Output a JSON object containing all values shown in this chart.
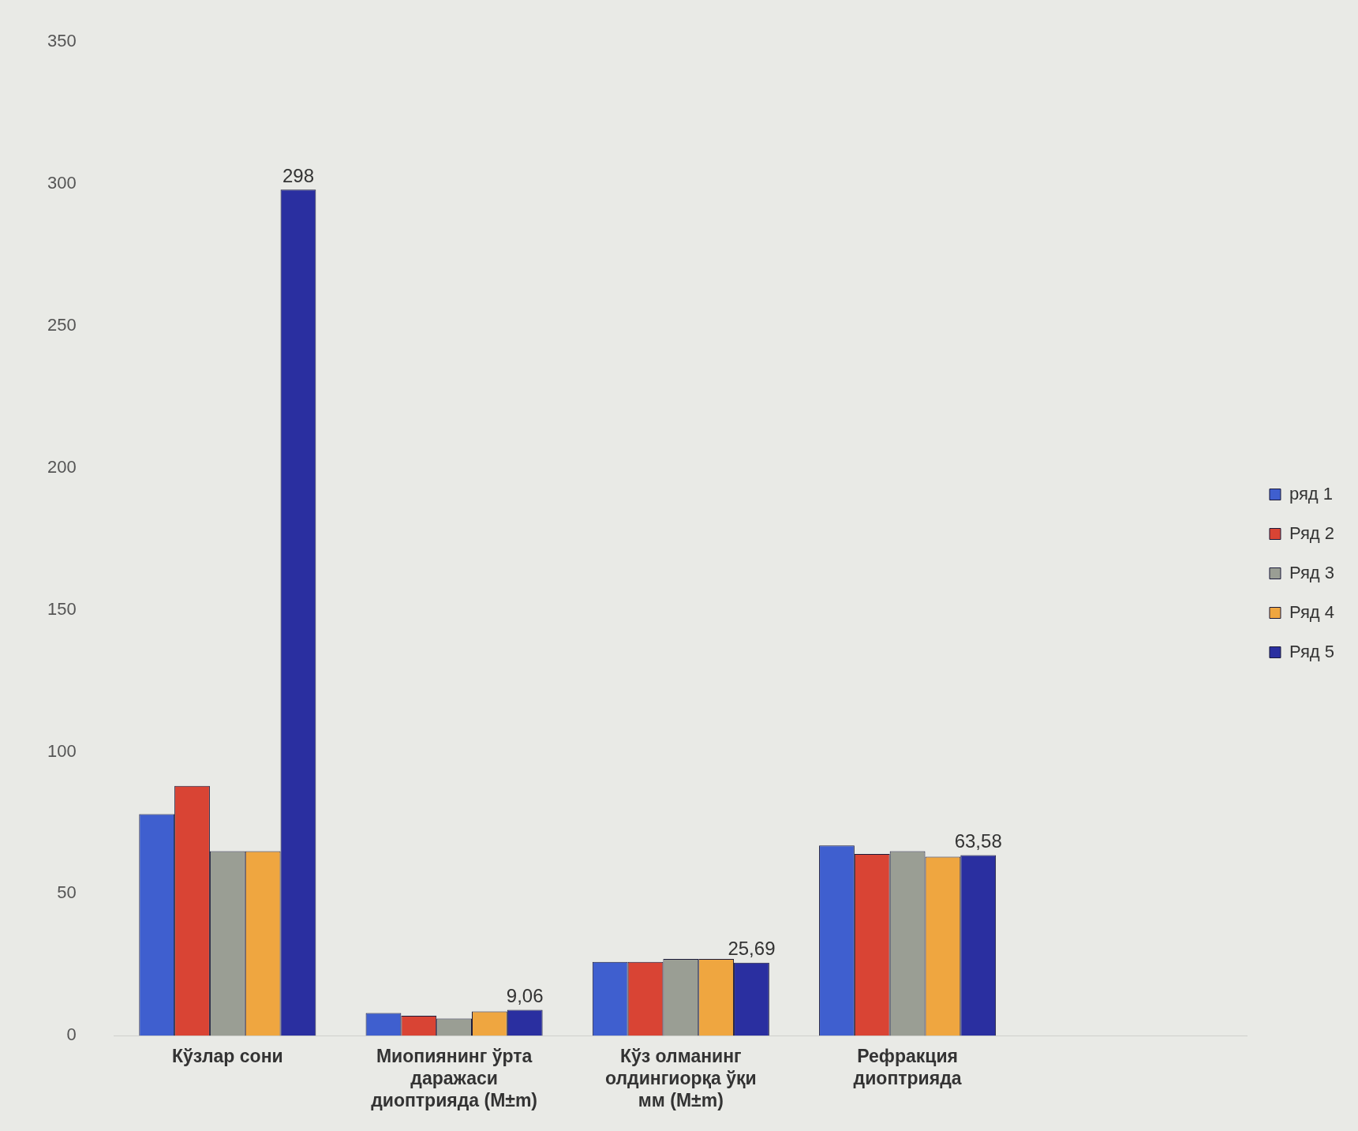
{
  "chart_data": {
    "type": "bar",
    "categories": [
      "Кўзлар сони",
      "Миопиянинг ўрта даражаси диоптрияда (M±m)",
      "Кўз олманинг олдингиорқа ўқи мм (M±m)",
      "Рефракция диоптрияда",
      null
    ],
    "series": [
      {
        "name": "ряд 1",
        "color": "#3f5fcf",
        "values": [
          78,
          8,
          26,
          67,
          null
        ]
      },
      {
        "name": "Ряд 2",
        "color": "#d94434",
        "values": [
          88,
          7,
          26,
          64,
          null
        ]
      },
      {
        "name": "Ряд 3",
        "color": "#9a9e94",
        "values": [
          65,
          6,
          27,
          65,
          null
        ]
      },
      {
        "name": "Ряд 4",
        "color": "#efa640",
        "values": [
          65,
          8.5,
          27,
          63,
          null
        ]
      },
      {
        "name": "Ряд 5",
        "color": "#2a2fa0",
        "values": [
          298,
          9.06,
          25.69,
          63.58,
          null
        ],
        "value_labels": [
          "298",
          "9,06",
          "25,69",
          "63,58",
          null
        ]
      }
    ],
    "ylim": [
      0,
      350
    ],
    "yticks": [
      0,
      50,
      100,
      150,
      200,
      250,
      300,
      350
    ],
    "grid": false,
    "legend": "right"
  }
}
